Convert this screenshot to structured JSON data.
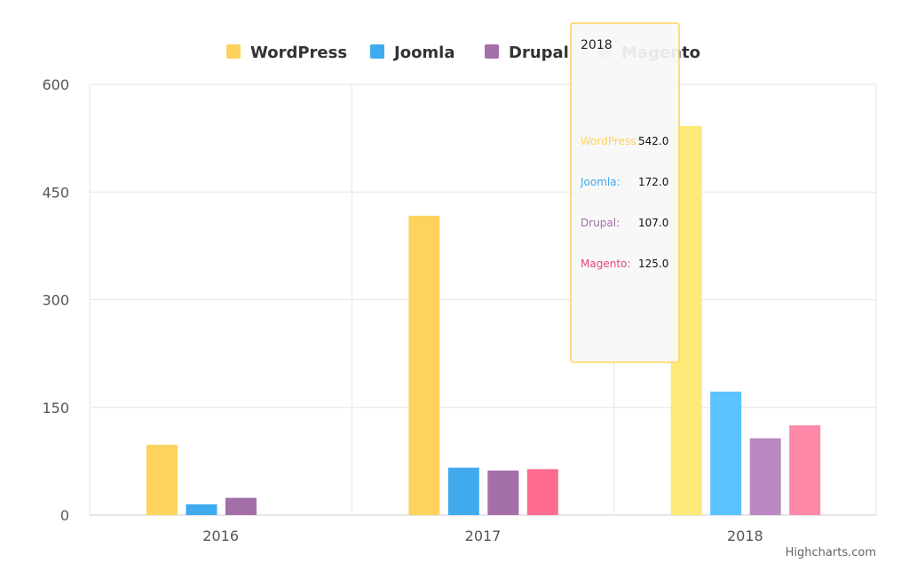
{
  "chart_data": {
    "type": "bar",
    "categories": [
      "2016",
      "2017",
      "2018"
    ],
    "series": [
      {
        "name": "WordPress",
        "values": [
          98,
          417,
          542
        ],
        "color": "#fed35d"
      },
      {
        "name": "Joomla",
        "values": [
          15,
          66,
          172
        ],
        "color": "#3faaee"
      },
      {
        "name": "Drupal",
        "values": [
          24,
          62,
          107
        ],
        "color": "#a46fa9"
      },
      {
        "name": "Magento",
        "values": [
          0,
          64,
          125
        ],
        "color": "#ff6c8f",
        "legend_inactive": true
      }
    ],
    "highlighted_category": "2018",
    "highlight_colors": [
      "#ffe978",
      "#5bc3ff",
      "#bb88c3",
      "#ff89a8"
    ],
    "ylim": [
      0,
      600
    ],
    "yticks": [
      "0",
      "150",
      "300",
      "450",
      "600"
    ],
    "grid": true,
    "legend_position": "top"
  },
  "tooltip": {
    "title": "2018",
    "rows": [
      {
        "name": "WordPress:",
        "value": "542.0",
        "color": "#fed35d"
      },
      {
        "name": "Joomla:",
        "value": "172.0",
        "color": "#3faaee"
      },
      {
        "name": "Drupal:",
        "value": "107.0",
        "color": "#a46fa9"
      },
      {
        "name": "Magento:",
        "value": "125.0",
        "color": "#e6457a"
      }
    ]
  },
  "credits": "Highcharts.com"
}
